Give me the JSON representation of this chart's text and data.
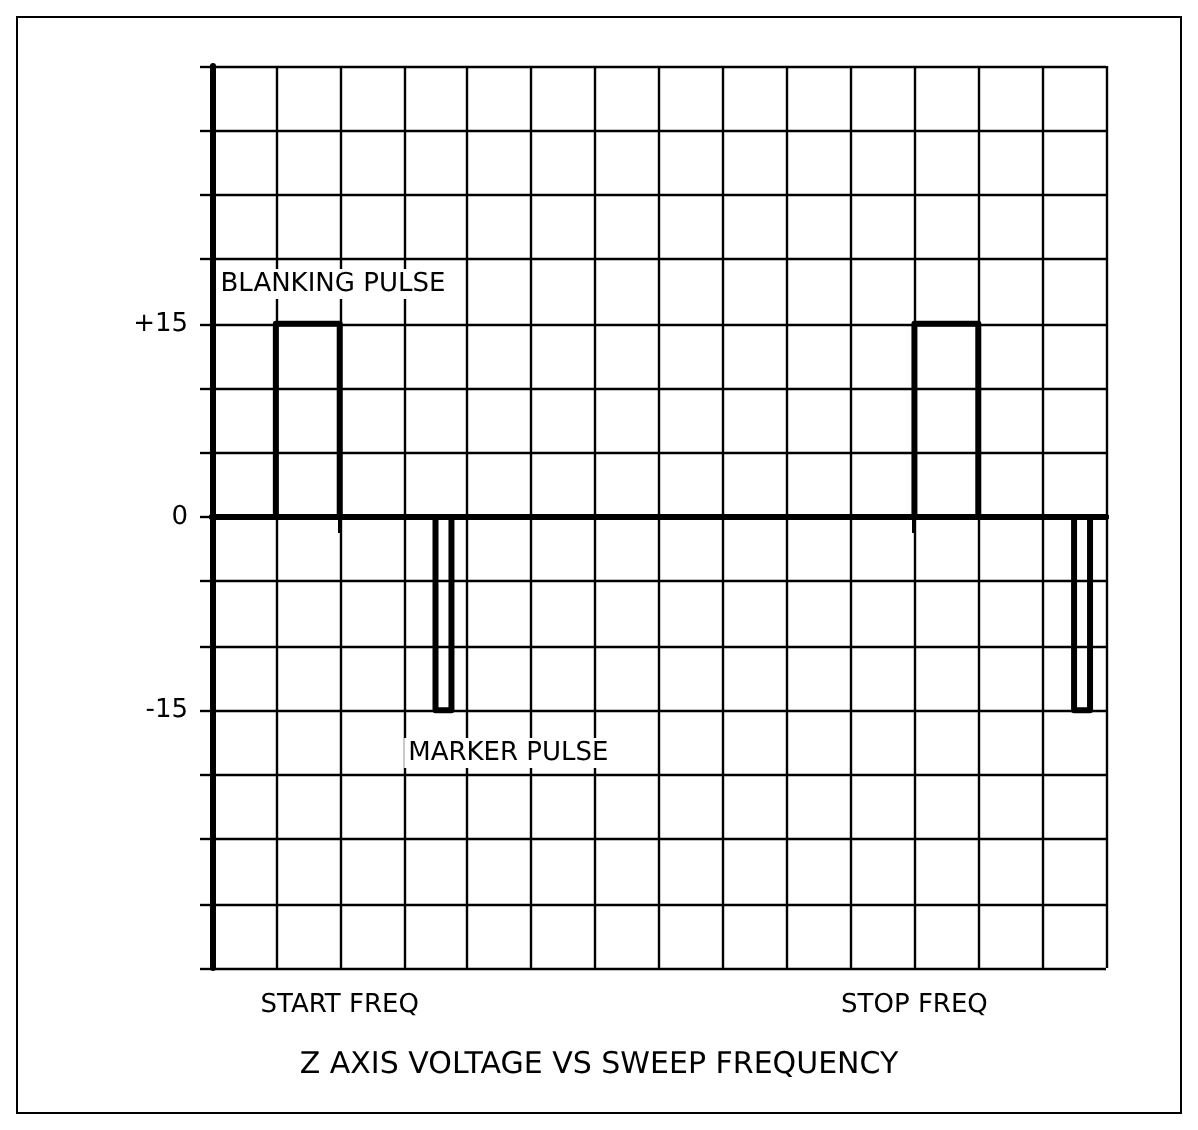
{
  "chart_data": {
    "type": "step",
    "title": "Z AXIS VOLTAGE VS SWEEP FREQUENCY",
    "categories": [
      null,
      null,
      null,
      null,
      null,
      null,
      null,
      null,
      "START FREQ",
      null,
      null,
      null,
      null,
      null,
      null,
      null,
      null,
      null,
      null,
      null,
      null,
      null,
      null,
      null,
      null,
      null,
      null,
      null,
      null,
      null,
      null,
      null,
      null,
      null,
      null,
      null,
      null,
      null,
      null,
      null,
      null,
      null,
      null,
      null,
      "STOP FREQ",
      null,
      null,
      null,
      null,
      null,
      null,
      null,
      null,
      null,
      null,
      null,
      null
    ],
    "series": [
      {
        "color": "#000000",
        "values": [
          0,
          0,
          0,
          0,
          15,
          15,
          15,
          15,
          0,
          0,
          0,
          0,
          0,
          0,
          -15,
          0,
          0,
          0,
          0,
          0,
          0,
          0,
          0,
          0,
          0,
          0,
          0,
          0,
          0,
          0,
          0,
          0,
          0,
          0,
          0,
          0,
          0,
          0,
          0,
          0,
          0,
          0,
          0,
          0,
          15,
          15,
          15,
          15,
          0,
          0,
          0,
          0,
          0,
          0,
          -15,
          0,
          0
        ]
      }
    ],
    "ylim": [
      -35,
      35
    ],
    "yticks": [
      {
        "value": -35,
        "label": null
      },
      {
        "value": -30,
        "label": null
      },
      {
        "value": -25,
        "label": null
      },
      {
        "value": -20,
        "label": null
      },
      {
        "value": -15,
        "label": "-15"
      },
      {
        "value": -10,
        "label": null
      },
      {
        "value": -5,
        "label": null
      },
      {
        "value": 0,
        "label": "0"
      },
      {
        "value": 5,
        "label": null
      },
      {
        "value": 10,
        "label": null
      },
      {
        "value": 15,
        "label": "+15"
      },
      {
        "value": 20,
        "label": null
      },
      {
        "value": 25,
        "label": null
      },
      {
        "value": 30,
        "label": null
      },
      {
        "value": 35,
        "label": null
      }
    ],
    "annotations": [
      "BLANKING PULSE",
      "MARKER PULSE"
    ],
    "grid": true,
    "marker": "none",
    "line_style": "solid"
  }
}
